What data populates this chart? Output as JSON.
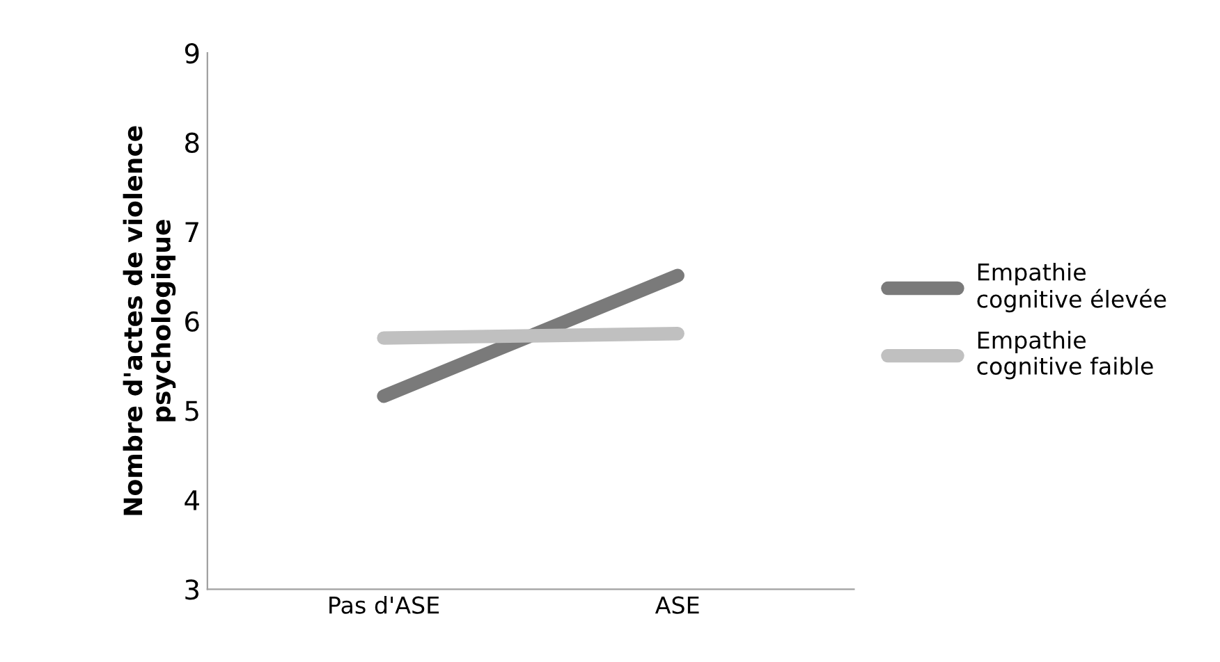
{
  "chart_data": {
    "type": "line",
    "ylabel": "Nombre d'actes de violence\npsychologique",
    "categories": [
      "Pas d'ASE",
      "ASE"
    ],
    "series": [
      {
        "name": "Empathie\ncognitive élevée",
        "color": "#7a7a7a",
        "values": [
          5.16,
          6.51
        ]
      },
      {
        "name": "Empathie\ncognitive faible",
        "color": "#c0c0c0",
        "values": [
          5.81,
          5.86
        ]
      }
    ],
    "ylim": [
      3,
      9
    ],
    "yticks": [
      3,
      4,
      5,
      6,
      7,
      8,
      9
    ],
    "grid": false,
    "legend": "right",
    "marker": "none",
    "line_style": "solid"
  }
}
